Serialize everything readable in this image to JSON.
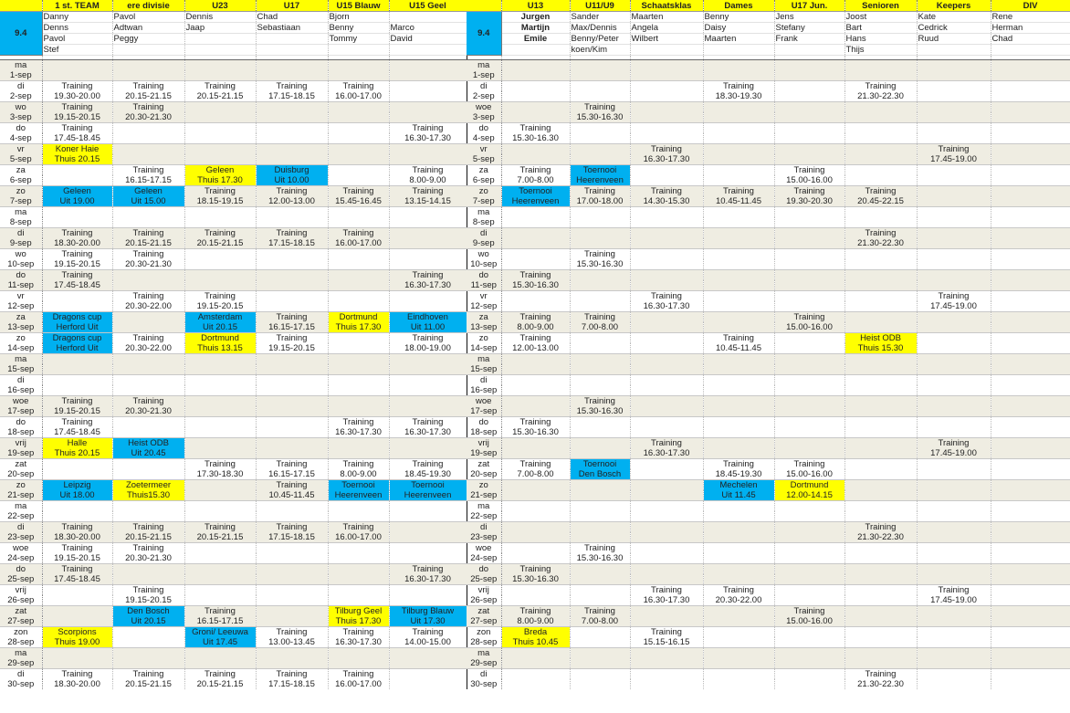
{
  "date_badge": "9.4",
  "left": {
    "teams": [
      "1 st. TEAM",
      "ere divisie",
      "U23",
      "U17",
      "U15 Blauw",
      "U15 Geel"
    ],
    "staff": [
      [
        "Danny",
        "Pavol",
        "Dennis",
        "Chad",
        "Bjorn",
        ""
      ],
      [
        "Denns",
        "Adtwan",
        "Jaap",
        "Sebastiaan",
        "Benny",
        "Marco"
      ],
      [
        "Pavol",
        "Peggy",
        "",
        "",
        "Tommy",
        "David"
      ],
      [
        "Stef",
        "",
        "",
        "",
        "",
        ""
      ]
    ],
    "days": [
      [
        "ma",
        "1-sep",
        []
      ],
      [
        "di",
        "2-sep",
        [
          [
            0,
            "Training",
            "19.30-20.00"
          ],
          [
            1,
            "Training",
            "20.15-21.15"
          ],
          [
            2,
            "Training",
            "20.15-21.15"
          ],
          [
            3,
            "Training",
            "17.15-18.15"
          ],
          [
            4,
            "Training",
            "16.00-17.00"
          ]
        ]
      ],
      [
        "wo",
        "3-sep",
        [
          [
            0,
            "Training",
            "19.15-20.15"
          ],
          [
            1,
            "Training",
            "20.30-21.30"
          ]
        ]
      ],
      [
        "do",
        "4-sep",
        [
          [
            0,
            "Training",
            "17.45-18.45"
          ],
          [
            5,
            "Training",
            "16.30-17.30"
          ]
        ]
      ],
      [
        "vr",
        "5-sep",
        [
          [
            0,
            "Koner Haie",
            "Thuis  20.15",
            "y"
          ]
        ]
      ],
      [
        "za",
        "6-sep",
        [
          [
            1,
            "Training",
            "16.15-17.15"
          ],
          [
            2,
            "Geleen",
            "Thuis 17.30",
            "y"
          ],
          [
            3,
            "Duisburg",
            "Uit 10.00",
            "c"
          ],
          [
            5,
            "Training",
            "8.00-9.00"
          ]
        ]
      ],
      [
        "zo",
        "7-sep",
        [
          [
            0,
            "Geleen",
            "Uit 19.00",
            "c"
          ],
          [
            1,
            "Geleen",
            "Uit 15.00",
            "c"
          ],
          [
            2,
            "Training",
            "18.15-19.15"
          ],
          [
            3,
            "Training",
            "12.00-13.00"
          ],
          [
            4,
            "Training",
            "15.45-16.45"
          ],
          [
            5,
            "Training",
            "13.15-14.15"
          ]
        ]
      ],
      [
        "ma",
        "8-sep",
        []
      ],
      [
        "di",
        "9-sep",
        [
          [
            0,
            "Training",
            "18.30-20.00"
          ],
          [
            1,
            "Training",
            "20.15-21.15"
          ],
          [
            2,
            "Training",
            "20.15-21.15"
          ],
          [
            3,
            "Training",
            "17.15-18.15"
          ],
          [
            4,
            "Training",
            "16.00-17.00"
          ]
        ]
      ],
      [
        "wo",
        "10-sep",
        [
          [
            0,
            "Training",
            "19.15-20.15"
          ],
          [
            1,
            "Training",
            "20.30-21.30"
          ]
        ]
      ],
      [
        "do",
        "11-sep",
        [
          [
            0,
            "Training",
            "17.45-18.45"
          ],
          [
            5,
            "Training",
            "16.30-17.30"
          ]
        ]
      ],
      [
        "vr",
        "12-sep",
        [
          [
            1,
            "Training",
            "20.30-22.00"
          ],
          [
            2,
            "Training",
            "19.15-20.15"
          ]
        ]
      ],
      [
        "za",
        "13-sep",
        [
          [
            0,
            "Dragons cup",
            "Herford Uit",
            "c"
          ],
          [
            2,
            "Amsterdam",
            "Uit 20.15",
            "c"
          ],
          [
            3,
            "Training",
            "16.15-17.15"
          ],
          [
            4,
            "Dortmund",
            "Thuis 17.30",
            "y"
          ],
          [
            5,
            "Eindhoven",
            "Uit 11.00",
            "c"
          ]
        ]
      ],
      [
        "zo",
        "14-sep",
        [
          [
            0,
            "Dragons cup",
            "Herford Uit",
            "c"
          ],
          [
            1,
            "Training",
            "20.30-22.00"
          ],
          [
            2,
            "Dortmund",
            "Thuis 13.15",
            "y"
          ],
          [
            3,
            "Training",
            "19.15-20.15"
          ],
          [
            5,
            "Training",
            "18.00-19.00"
          ]
        ]
      ],
      [
        "ma",
        "15-sep",
        []
      ],
      [
        "di",
        "16-sep",
        []
      ],
      [
        "woe",
        "17-sep",
        [
          [
            0,
            "Training",
            "19.15-20.15"
          ],
          [
            1,
            "Training",
            "20.30-21.30"
          ]
        ]
      ],
      [
        "do",
        "18-sep",
        [
          [
            0,
            "Training",
            "17.45-18.45"
          ],
          [
            4,
            "Training",
            "16.30-17.30"
          ],
          [
            5,
            "Training",
            "16.30-17.30"
          ]
        ]
      ],
      [
        "vrij",
        "19-sep",
        [
          [
            0,
            "Halle",
            "Thuis 20.15",
            "y"
          ],
          [
            1,
            "Heist ODB",
            "Uit 20.45",
            "c"
          ]
        ]
      ],
      [
        "zat",
        "20-sep",
        [
          [
            2,
            "Training",
            "17.30-18.30"
          ],
          [
            3,
            "Training",
            "16.15-17.15"
          ],
          [
            4,
            "Training",
            "8.00-9.00"
          ],
          [
            5,
            "Training",
            "18.45-19.30"
          ]
        ]
      ],
      [
        "zo",
        "21-sep",
        [
          [
            0,
            "Leipzig",
            "Uit 18.00",
            "c"
          ],
          [
            1,
            "Zoetermeer",
            "Thuis15.30",
            "y"
          ],
          [
            3,
            "Training",
            "10.45-11.45"
          ],
          [
            4,
            "Toernooi",
            "Heerenveen",
            "c"
          ],
          [
            5,
            "Toernooi",
            "Heerenveen",
            "c"
          ]
        ]
      ],
      [
        "ma",
        "22-sep",
        []
      ],
      [
        "di",
        "23-sep",
        [
          [
            0,
            "Training",
            "18.30-20.00"
          ],
          [
            1,
            "Training",
            "20.15-21.15"
          ],
          [
            2,
            "Training",
            "20.15-21.15"
          ],
          [
            3,
            "Training",
            "17.15-18.15"
          ],
          [
            4,
            "Training",
            "16.00-17.00"
          ]
        ]
      ],
      [
        "woe",
        "24-sep",
        [
          [
            0,
            "Training",
            "19.15-20.15"
          ],
          [
            1,
            "Training",
            "20.30-21.30"
          ]
        ]
      ],
      [
        "do",
        "25-sep",
        [
          [
            0,
            "Training",
            "17.45-18.45"
          ],
          [
            5,
            "Training",
            "16.30-17.30"
          ]
        ]
      ],
      [
        "vrij",
        "26-sep",
        [
          [
            1,
            "Training",
            "19.15-20.15"
          ]
        ]
      ],
      [
        "zat",
        "27-sep",
        [
          [
            1,
            "Den Bosch",
            "Uit 20.15",
            "c"
          ],
          [
            2,
            "Training",
            "16.15-17.15"
          ],
          [
            4,
            "Tilburg Geel",
            "Thuis 17.30",
            "y"
          ],
          [
            5,
            "Tilburg Blauw",
            "Uit 17.30",
            "c"
          ]
        ]
      ],
      [
        "zon",
        "28-sep",
        [
          [
            0,
            "Scorpions",
            "Thuis 19.00",
            "y"
          ],
          [
            2,
            "Groni/ Leeuwa",
            "Uit 17.45",
            "c"
          ],
          [
            3,
            "Training",
            "13.00-13.45"
          ],
          [
            4,
            "Training",
            "16.30-17.30"
          ],
          [
            5,
            "Training",
            "14.00-15.00"
          ]
        ]
      ],
      [
        "ma",
        "29-sep",
        []
      ],
      [
        "di",
        "30-sep",
        [
          [
            0,
            "Training",
            "18.30-20.00"
          ],
          [
            1,
            "Training",
            "20.15-21.15"
          ],
          [
            2,
            "Training",
            "20.15-21.15"
          ],
          [
            3,
            "Training",
            "17.15-18.15"
          ],
          [
            4,
            "Training",
            "16.00-17.00"
          ]
        ]
      ]
    ]
  },
  "right": {
    "teams": [
      "U13",
      "U11/U9",
      "Schaatsklas",
      "Dames",
      "U17 Jun.",
      "Senioren",
      "Keepers",
      "DIV"
    ],
    "staff": [
      [
        "Jurgen",
        "Sander",
        "Maarten",
        "Benny",
        "Jens",
        "Joost",
        "Kate",
        "Rene"
      ],
      [
        "Martijn",
        "Max/Dennis",
        "Angela",
        "Daisy",
        "Stefany",
        "Bart",
        "Cedrick",
        "Herman"
      ],
      [
        "Emile",
        "Benny/Peter",
        "Wilbert",
        "Maarten",
        "Frank",
        "Hans",
        "Ruud",
        "Chad"
      ],
      [
        "",
        "koen/Kim",
        "",
        "",
        "",
        "Thijs",
        "",
        ""
      ]
    ],
    "days": [
      [
        "ma",
        "1-sep",
        []
      ],
      [
        "di",
        "2-sep",
        [
          [
            3,
            "Training",
            "18.30-19.30"
          ],
          [
            5,
            "Training",
            "21.30-22.30"
          ]
        ]
      ],
      [
        "woe",
        "3-sep",
        [
          [
            1,
            "Training",
            "15.30-16.30"
          ]
        ]
      ],
      [
        "do",
        "4-sep",
        [
          [
            0,
            "Training",
            "15.30-16.30"
          ]
        ]
      ],
      [
        "vr",
        "5-sep",
        [
          [
            2,
            "Training",
            "16.30-17.30"
          ],
          [
            6,
            "Training",
            "17.45-19.00"
          ]
        ]
      ],
      [
        "za",
        "6-sep",
        [
          [
            0,
            "Training",
            "7.00-8.00"
          ],
          [
            1,
            "Toernooi",
            "Heerenveen",
            "c"
          ],
          [
            4,
            "Training",
            "15.00-16.00"
          ]
        ]
      ],
      [
        "zo",
        "7-sep",
        [
          [
            0,
            "Toernooi",
            "Heerenveen",
            "c"
          ],
          [
            1,
            "Training",
            "17.00-18.00"
          ],
          [
            2,
            "Training",
            "14.30-15.30"
          ],
          [
            3,
            "Training",
            "10.45-11.45"
          ],
          [
            4,
            "Training",
            "19.30-20.30"
          ],
          [
            5,
            "Training",
            "20.45-22.15"
          ]
        ]
      ],
      [
        "ma",
        "8-sep",
        []
      ],
      [
        "di",
        "9-sep",
        [
          [
            5,
            "Training",
            "21.30-22.30"
          ]
        ]
      ],
      [
        "wo",
        "10-sep",
        [
          [
            1,
            "Training",
            "15.30-16.30"
          ]
        ]
      ],
      [
        "do",
        "11-sep",
        [
          [
            0,
            "Training",
            "15.30-16.30"
          ]
        ]
      ],
      [
        "vr",
        "12-sep",
        [
          [
            2,
            "Training",
            "16.30-17.30"
          ],
          [
            6,
            "Training",
            "17.45-19.00"
          ]
        ]
      ],
      [
        "za",
        "13-sep",
        [
          [
            0,
            "Training",
            "8.00-9.00"
          ],
          [
            1,
            "Training",
            "7.00-8.00"
          ],
          [
            4,
            "Training",
            "15.00-16.00"
          ]
        ]
      ],
      [
        "zo",
        "14-sep",
        [
          [
            0,
            "Training",
            "12.00-13.00"
          ],
          [
            3,
            "Training",
            "10.45-11.45"
          ],
          [
            5,
            "Heist  ODB",
            "Thuis 15.30",
            "y"
          ]
        ]
      ],
      [
        "ma",
        "15-sep",
        []
      ],
      [
        "di",
        "16-sep",
        []
      ],
      [
        "woe",
        "17-sep",
        [
          [
            1,
            "Training",
            "15.30-16.30"
          ]
        ]
      ],
      [
        "do",
        "18-sep",
        [
          [
            0,
            "Training",
            "15.30-16.30"
          ]
        ]
      ],
      [
        "vrij",
        "19-sep",
        [
          [
            2,
            "Training",
            "16.30-17.30"
          ],
          [
            6,
            "Training",
            "17.45-19.00"
          ]
        ]
      ],
      [
        "zat",
        "20-sep",
        [
          [
            0,
            "Training",
            "7.00-8.00"
          ],
          [
            1,
            "Toernooi",
            "Den Bosch",
            "c"
          ],
          [
            3,
            "Training",
            "18.45-19.30"
          ],
          [
            4,
            "Training",
            "15.00-16.00"
          ]
        ]
      ],
      [
        "zo",
        "21-sep",
        [
          [
            3,
            "Mechelen",
            "Uit 11.45",
            "c"
          ],
          [
            4,
            "Dortmund",
            "12.00-14.15",
            "y"
          ]
        ]
      ],
      [
        "ma",
        "22-sep",
        []
      ],
      [
        "di",
        "23-sep",
        [
          [
            5,
            "Training",
            "21.30-22.30"
          ]
        ]
      ],
      [
        "woe",
        "24-sep",
        [
          [
            1,
            "Training",
            "15.30-16.30"
          ]
        ]
      ],
      [
        "do",
        "25-sep",
        [
          [
            0,
            "Training",
            "15.30-16.30"
          ]
        ]
      ],
      [
        "vrij",
        "26-sep",
        [
          [
            2,
            "Training",
            "16.30-17.30"
          ],
          [
            3,
            "Training",
            "20.30-22.00"
          ],
          [
            6,
            "Training",
            "17.45-19.00"
          ]
        ]
      ],
      [
        "zat",
        "27-sep",
        [
          [
            0,
            "Training",
            "8.00-9.00"
          ],
          [
            1,
            "Training",
            "7.00-8.00"
          ],
          [
            4,
            "Training",
            "15.00-16.00"
          ]
        ]
      ],
      [
        "zon",
        "28-sep",
        [
          [
            0,
            "Breda",
            "Thuis 10.45",
            "y"
          ],
          [
            2,
            "Training",
            "15.15-16.15"
          ]
        ]
      ],
      [
        "ma",
        "29-sep",
        []
      ],
      [
        "di",
        "30-sep",
        [
          [
            5,
            "Training",
            "21.30-22.30"
          ]
        ]
      ]
    ]
  }
}
